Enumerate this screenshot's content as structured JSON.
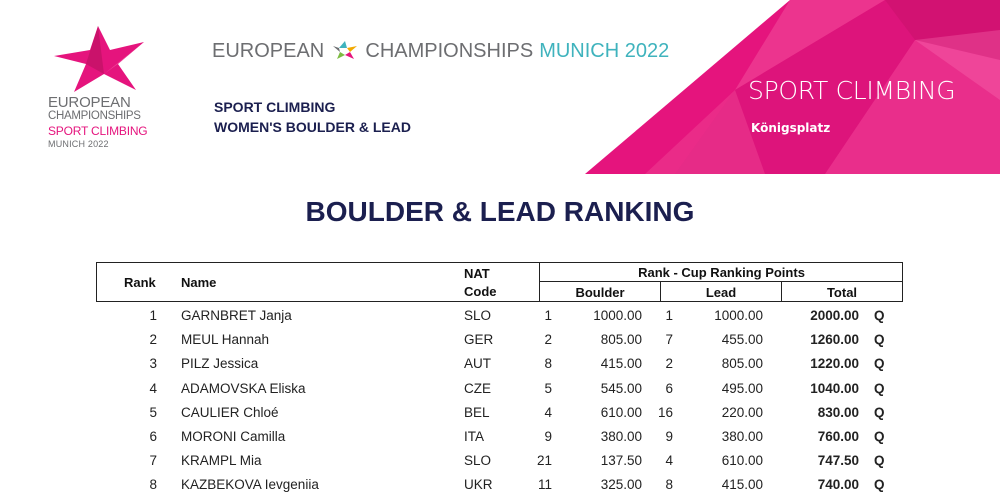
{
  "header": {
    "logo": {
      "line1": "EUROPEAN",
      "line2": "CHAMPIONSHIPS",
      "line3": "SPORT CLIMBING",
      "line4": "MUNICH 2022"
    },
    "event": {
      "part1": "EUROPEAN",
      "part2": "CHAMPIONSHIPS",
      "part3": "MUNICH 2022"
    },
    "discipline": "SPORT CLIMBING",
    "competition": "WOMEN'S BOULDER & LEAD",
    "banner": {
      "title": "SPORT CLIMBING",
      "venue": "Königsplatz"
    }
  },
  "page_title": "BOULDER & LEAD RANKING",
  "table": {
    "headers": {
      "rank": "Rank",
      "name": "Name",
      "nat_line1": "NAT",
      "nat_line2": "Code",
      "group": "Rank - Cup Ranking Points",
      "boulder": "Boulder",
      "lead": "Lead",
      "total": "Total"
    },
    "rows": [
      {
        "rank": "1",
        "name": "GARNBRET Janja",
        "nat": "SLO",
        "boulder_rank": "1",
        "boulder_points": "1000.00",
        "lead_rank": "1",
        "lead_points": "1000.00",
        "total": "2000.00",
        "q": "Q"
      },
      {
        "rank": "2",
        "name": "MEUL Hannah",
        "nat": "GER",
        "boulder_rank": "2",
        "boulder_points": "805.00",
        "lead_rank": "7",
        "lead_points": "455.00",
        "total": "1260.00",
        "q": "Q"
      },
      {
        "rank": "3",
        "name": "PILZ  Jessica",
        "nat": "AUT",
        "boulder_rank": "8",
        "boulder_points": "415.00",
        "lead_rank": "2",
        "lead_points": "805.00",
        "total": "1220.00",
        "q": "Q"
      },
      {
        "rank": "4",
        "name": "ADAMOVSKA Eliska",
        "nat": "CZE",
        "boulder_rank": "5",
        "boulder_points": "545.00",
        "lead_rank": "6",
        "lead_points": "495.00",
        "total": "1040.00",
        "q": "Q"
      },
      {
        "rank": "5",
        "name": "CAULIER Chloé",
        "nat": "BEL",
        "boulder_rank": "4",
        "boulder_points": "610.00",
        "lead_rank": "16",
        "lead_points": "220.00",
        "total": "830.00",
        "q": "Q"
      },
      {
        "rank": "6",
        "name": "MORONI Camilla",
        "nat": "ITA",
        "boulder_rank": "9",
        "boulder_points": "380.00",
        "lead_rank": "9",
        "lead_points": "380.00",
        "total": "760.00",
        "q": "Q"
      },
      {
        "rank": "7",
        "name": "KRAMPL Mia",
        "nat": "SLO",
        "boulder_rank": "21",
        "boulder_points": "137.50",
        "lead_rank": "4",
        "lead_points": "610.00",
        "total": "747.50",
        "q": "Q"
      },
      {
        "rank": "8",
        "name": "KAZBEKOVA Ievgeniia",
        "nat": "UKR",
        "boulder_rank": "11",
        "boulder_points": "325.00",
        "lead_rank": "8",
        "lead_points": "415.00",
        "total": "740.00",
        "q": "Q"
      }
    ]
  },
  "colors": {
    "brand_pink": "#e5147d",
    "navy": "#1b1f4f",
    "teal": "#3fb3bd",
    "grey": "#6d6e71"
  }
}
